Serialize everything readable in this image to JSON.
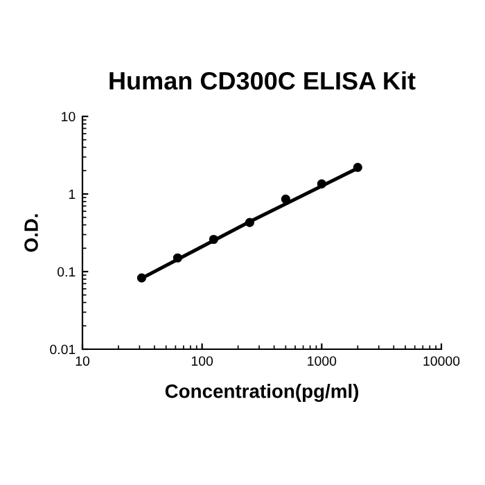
{
  "chart_data": {
    "type": "scatter",
    "title": "Human CD300C ELISA Kit",
    "xlabel": "Concentration(pg/ml)",
    "ylabel": "O.D.",
    "log": "xy",
    "series": [
      {
        "color": "#000000",
        "marker": "circle",
        "x": [
          31.25,
          62.5,
          125,
          250,
          500,
          1000,
          2000
        ],
        "values": [
          0.083,
          0.15,
          0.26,
          0.43,
          0.86,
          1.35,
          2.2
        ]
      },
      {
        "type": "line",
        "color": "#000000",
        "x": [
          31.25,
          250,
          2000
        ],
        "values": [
          0.082,
          0.44,
          2.15
        ]
      }
    ],
    "xlim": [
      10,
      10000
    ],
    "xticks": [
      10,
      100,
      1000,
      10000
    ],
    "ylim": [
      0.01,
      10
    ],
    "yticks": [
      0.01,
      0.1,
      1,
      10
    ],
    "grid": false
  }
}
